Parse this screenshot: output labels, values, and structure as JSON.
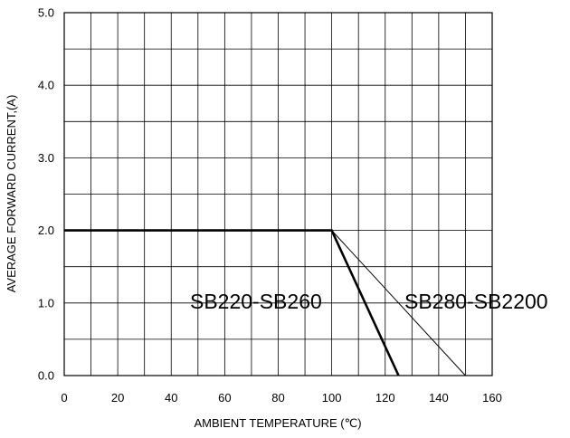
{
  "chart_data": {
    "type": "line",
    "xlabel": "AMBIENT TEMPERATURE (℃)",
    "ylabel": "AVERAGE FORWARD CURRENT,(A)",
    "xlim": [
      0,
      160
    ],
    "ylim": [
      0,
      5
    ],
    "xticks": [
      "0",
      "20",
      "40",
      "60",
      "80",
      "100",
      "120",
      "140",
      "160"
    ],
    "yticks": [
      "0.0",
      "1.0",
      "2.0",
      "3.0",
      "4.0",
      "5.0"
    ],
    "grid": true,
    "series": [
      {
        "name": "SB220-SB260",
        "x": [
          0,
          100,
          125
        ],
        "y": [
          2.0,
          2.0,
          0.0
        ],
        "line": "thick"
      },
      {
        "name": "SB280-SB2200",
        "x": [
          0,
          100,
          150
        ],
        "y": [
          2.0,
          2.0,
          0.0
        ],
        "line": "thin"
      }
    ],
    "colors": {
      "line": "#000000",
      "grid": "#000000"
    }
  }
}
